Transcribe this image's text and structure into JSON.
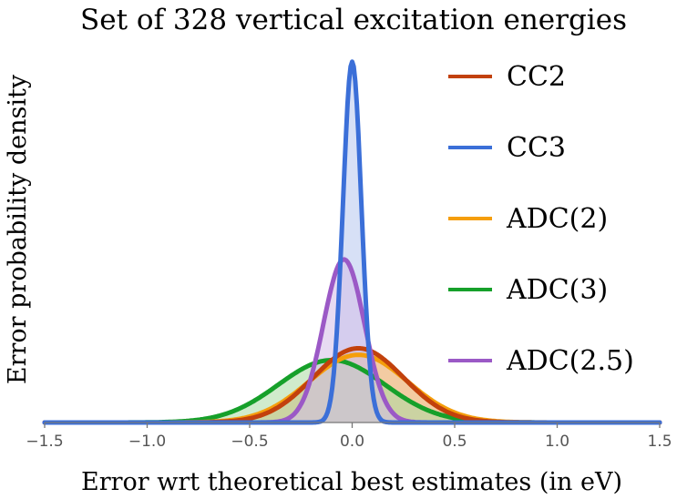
{
  "chart_data": {
    "type": "area",
    "title": "Set of 328 vertical excitation energies",
    "xlabel": "Error wrt theoretical best estimates (in eV)",
    "ylabel": "Error probability density",
    "xlim": [
      -1.5,
      1.5
    ],
    "x_ticks": [
      -1.5,
      -1.0,
      -0.5,
      0.0,
      0.5,
      1.0,
      1.5
    ],
    "x_tick_labels": [
      "−1.5",
      "−1.0",
      "−0.5",
      "0.0",
      "0.5",
      "1.0",
      "1.5"
    ],
    "ylim": [
      0,
      9.2
    ],
    "y_ticks_shown": false,
    "grid": false,
    "legend_position": "right",
    "series": [
      {
        "name": "CC2",
        "color": "#c2410c",
        "fill": "#e0a88a",
        "distribution": "gaussian",
        "mean": 0.03,
        "sd": 0.22,
        "peak_density": 1.82
      },
      {
        "name": "CC3",
        "color": "#3b6fd8",
        "fill": "#b7c6ee",
        "distribution": "gaussian",
        "mean": 0.0,
        "sd": 0.045,
        "peak_density": 8.85
      },
      {
        "name": "ADC(2)",
        "color": "#f59e0b",
        "fill": "#f8c98a",
        "distribution": "gaussian",
        "mean": 0.03,
        "sd": 0.24,
        "peak_density": 1.66
      },
      {
        "name": "ADC(3)",
        "color": "#16a02a",
        "fill": "#a9dba3",
        "distribution": "gaussian",
        "mean": -0.1,
        "sd": 0.26,
        "peak_density": 1.53
      },
      {
        "name": "ADC(2.5)",
        "color": "#9b59c6",
        "fill": "#d3bde8",
        "distribution": "gaussian",
        "mean": -0.04,
        "sd": 0.1,
        "peak_density": 4.0
      }
    ]
  }
}
